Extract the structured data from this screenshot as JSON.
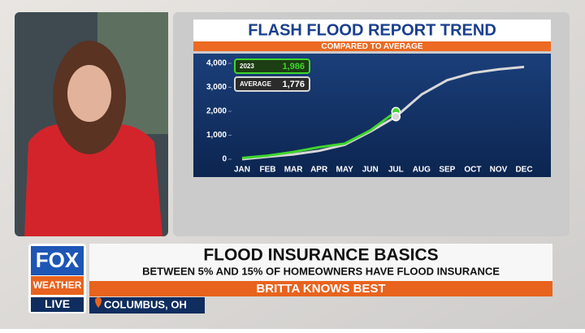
{
  "chart_data": {
    "type": "line",
    "title": "FLASH FLOOD REPORT TREND",
    "subtitle": "COMPARED TO AVERAGE",
    "categories": [
      "JAN",
      "FEB",
      "MAR",
      "APR",
      "MAY",
      "JUN",
      "JUL",
      "AUG",
      "SEP",
      "OCT",
      "NOV",
      "DEC"
    ],
    "series": [
      {
        "name": "2023",
        "color": "#3fd62c",
        "values": [
          50,
          150,
          300,
          500,
          650,
          1200,
          1986,
          null,
          null,
          null,
          null,
          null
        ],
        "value_labels": [
          null,
          null,
          null,
          null,
          null,
          null,
          "1,986",
          null,
          null,
          null,
          null,
          null
        ]
      },
      {
        "name": "AVERAGE",
        "color": "#d8d8d8",
        "values": [
          0,
          100,
          200,
          350,
          600,
          1150,
          1776,
          2700,
          3300,
          3600,
          3750,
          3850
        ],
        "value_labels": [
          null,
          null,
          null,
          null,
          null,
          null,
          "1,776",
          null,
          null,
          null,
          null,
          null
        ]
      }
    ],
    "ylim": [
      0,
      4000
    ],
    "yticks": [
      0,
      {
        "value": 1000,
        "label": "1,000"
      },
      {
        "value": 2000,
        "label": "2,000"
      },
      {
        "value": 3000,
        "label": "3,000"
      },
      {
        "value": 4000,
        "label": "4,000"
      }
    ]
  },
  "lower_third": {
    "headline": "FLOOD INSURANCE BASICS",
    "subhead": "BETWEEN 5% AND 15% OF HOMEOWNERS HAVE FLOOD INSURANCE",
    "show": "BRITTA KNOWS BEST",
    "location": "COLUMBUS, OH"
  },
  "logo": {
    "brand": "FOX",
    "channel": "WEATHER",
    "status": "LIVE"
  }
}
